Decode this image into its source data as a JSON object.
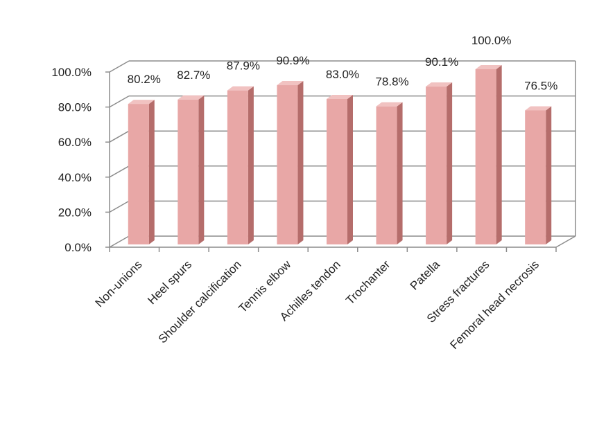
{
  "chart_data": {
    "type": "bar",
    "title": "",
    "xlabel": "",
    "ylabel": "",
    "categories": [
      "Non-unions",
      "Heel spurs",
      "Shoulder calcification",
      "Tennis elbow",
      "Achilles tendon",
      "Trochanter",
      "Patella",
      "Stress fractures",
      "Femoral head necrosis"
    ],
    "values": [
      80.2,
      82.7,
      87.9,
      90.9,
      83.0,
      78.8,
      90.1,
      100.0,
      76.5
    ],
    "data_labels": [
      "80.2%",
      "82.7%",
      "87.9%",
      "90.9%",
      "83.0%",
      "78.8%",
      "90.1%",
      "100.0%",
      "76.5%"
    ],
    "y_ticks": [
      "0.0%",
      "20.0%",
      "40.0%",
      "60.0%",
      "80.0%",
      "100.0%"
    ],
    "y_tick_values": [
      0,
      20,
      40,
      60,
      80,
      100
    ],
    "ylim": [
      0,
      100
    ],
    "grid": true,
    "legend": "none",
    "style": "3d-column",
    "colors": {
      "bar_front": "#e8a7a6",
      "bar_side": "#b56d6b",
      "bar_top": "#f1c2c1",
      "grid": "#8c8c8c",
      "axis": "#8c8c8c"
    }
  }
}
